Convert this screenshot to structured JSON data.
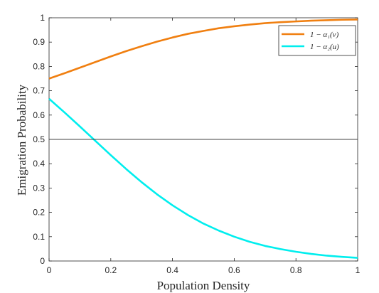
{
  "chart_data": {
    "type": "line",
    "title": "",
    "xlabel": "Population Density",
    "ylabel": "Emigration Probability",
    "xlim": [
      0,
      1
    ],
    "ylim": [
      0,
      1
    ],
    "x_ticks": [
      0,
      0.2,
      0.4,
      0.6,
      0.8,
      1
    ],
    "x_tick_labels": [
      "0",
      "0.2",
      "0.4",
      "0.6",
      "0.8",
      "1"
    ],
    "y_ticks": [
      0,
      0.1,
      0.2,
      0.3,
      0.4,
      0.5,
      0.6,
      0.7,
      0.8,
      0.9,
      1
    ],
    "y_tick_labels": [
      "0",
      "0.1",
      "0.2",
      "0.3",
      "0.4",
      "0.5",
      "0.6",
      "0.7",
      "0.8",
      "0.9",
      "1"
    ],
    "grid": false,
    "legend_position": "top-right",
    "x": [
      0,
      0.05,
      0.1,
      0.15,
      0.2,
      0.25,
      0.3,
      0.35,
      0.4,
      0.45,
      0.5,
      0.55,
      0.6,
      0.65,
      0.7,
      0.75,
      0.8,
      0.85,
      0.9,
      0.95,
      1
    ],
    "series": [
      {
        "name": "1 − α₁(v)",
        "color": "#f07f10",
        "values": [
          0.75,
          0.772,
          0.795,
          0.818,
          0.841,
          0.863,
          0.883,
          0.902,
          0.919,
          0.934,
          0.946,
          0.957,
          0.965,
          0.972,
          0.978,
          0.982,
          0.985,
          0.988,
          0.99,
          0.992,
          0.993
        ]
      },
      {
        "name": "1 − α₂(u)",
        "color": "#00eeee",
        "values": [
          0.667,
          0.611,
          0.553,
          0.494,
          0.435,
          0.378,
          0.324,
          0.274,
          0.229,
          0.189,
          0.154,
          0.125,
          0.1,
          0.079,
          0.062,
          0.049,
          0.038,
          0.029,
          0.022,
          0.017,
          0.013
        ]
      },
      {
        "name": "",
        "color": "#404040",
        "values": [
          0.5,
          0.5,
          0.5,
          0.5,
          0.5,
          0.5,
          0.5,
          0.5,
          0.5,
          0.5,
          0.5,
          0.5,
          0.5,
          0.5,
          0.5,
          0.5,
          0.5,
          0.5,
          0.5,
          0.5,
          0.5
        ]
      }
    ]
  }
}
